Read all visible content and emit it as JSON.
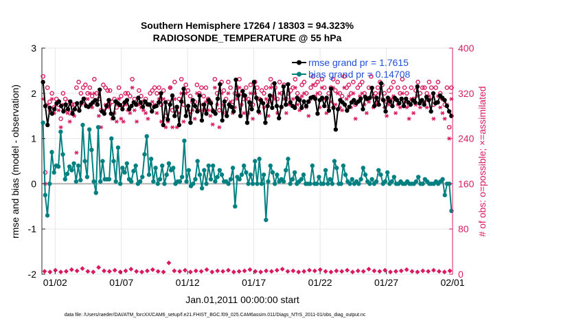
{
  "colors": {
    "rmse": "#000000",
    "bias": "#008080",
    "obs": "#d81b60",
    "zero_line": "#b0b0b0",
    "legend_text": "#1f4fd8",
    "grid": "#e6e6e6"
  },
  "chart_data": {
    "type": "line",
    "title": "Southern Hemisphere 17264 / 18303 = 94.323%",
    "subtitle": "RADIOSONDE_TEMPERATURE @ 55 hPa",
    "xlabel": "Jan.01,2011 00:00:00 start",
    "ylabel": "rmse and bias (model - observation)",
    "ylabel_right": "# of obs: o=possible; ×=assimilated",
    "footnote": "data file: /Users/raeder/DAI/ATM_forcXX/CAM6_setup/f.e21.FHIST_BGC.f09_025.CAM6assim.011/Diags_NTrS_2011-01/obs_diag_output.nc",
    "xlim": [
      0,
      31
    ],
    "ylim": [
      -2,
      3
    ],
    "ylim_right": [
      0,
      400
    ],
    "x_ticks": [
      1,
      6,
      11,
      16,
      21,
      26,
      31
    ],
    "x_tick_labels": [
      "01/02",
      "01/07",
      "01/12",
      "01/17",
      "01/22",
      "01/27",
      "02/01"
    ],
    "y_ticks": [
      -2,
      -1,
      0,
      1,
      2,
      3
    ],
    "y_tick_labels": [
      "-2",
      "-1",
      "0",
      "1",
      "2",
      "3"
    ],
    "y_ticks_right": [
      0,
      80,
      160,
      240,
      320,
      400
    ],
    "y_tick_labels_right": [
      "0",
      "80",
      "160",
      "240",
      "320",
      "400"
    ],
    "grid": true,
    "legend_position": "top-right",
    "series": [
      {
        "name": "rmse grand pr = 1.7615",
        "axis": "left",
        "values": [
          2.25,
          1.72,
          1.3,
          1.68,
          1.55,
          1.65,
          1.78,
          1.82,
          1.72,
          1.6,
          1.75,
          1.65,
          1.82,
          1.55,
          1.65,
          1.78,
          1.62,
          1.8,
          1.88,
          1.72,
          1.7,
          1.75,
          1.8,
          1.85,
          1.75,
          2.08,
          1.6,
          1.55,
          1.72,
          1.85,
          1.55,
          1.45,
          1.82,
          1.78,
          1.74,
          1.65,
          1.8,
          1.85,
          1.65,
          1.72,
          1.8,
          1.75,
          1.9,
          1.8,
          1.7,
          1.82,
          1.76,
          1.75,
          1.6,
          1.7,
          1.72,
          1.8,
          2.0,
          1.3,
          1.8,
          1.42,
          1.75,
          1.95,
          1.5,
          1.7,
          1.3,
          1.82,
          2.1,
          1.5,
          1.72,
          1.35,
          1.85,
          1.72,
          1.6,
          1.95,
          1.4,
          1.75,
          1.55,
          1.85,
          1.78,
          1.6,
          1.55,
          1.88,
          2.2,
          1.4,
          1.82,
          1.5,
          1.75,
          1.7,
          1.6,
          2.3,
          1.95,
          1.5,
          2.05,
          1.95,
          1.35,
          1.8,
          1.65,
          2.25,
          1.9,
          1.6,
          1.85,
          1.78,
          1.35,
          1.72,
          1.95,
          1.68,
          2.22,
          1.72,
          1.45,
          1.7,
          2.15,
          1.75,
          2.2,
          1.8,
          1.72,
          1.68,
          1.9,
          1.85,
          1.68,
          1.82,
          1.72,
          1.82,
          1.9,
          1.92,
          1.88,
          1.55,
          1.85,
          1.9,
          1.72,
          1.9,
          1.62,
          2.1,
          1.68,
          1.2,
          1.65,
          1.85,
          1.8,
          1.75,
          1.62,
          1.7,
          1.8,
          1.85,
          1.78,
          1.82,
          1.88,
          1.65,
          1.92,
          1.88,
          1.9,
          2.12,
          1.72,
          1.9,
          1.75,
          2.22,
          1.85,
          1.6,
          1.9,
          1.82,
          1.72,
          1.9,
          1.85,
          1.78,
          1.88,
          1.72,
          1.88,
          1.8,
          1.75,
          1.85,
          1.8,
          2.15,
          1.78,
          1.85,
          1.75,
          1.92,
          1.85,
          1.6,
          2.0,
          1.78,
          1.8,
          1.95,
          1.9,
          1.85,
          1.72,
          1.6,
          1.5
        ]
      },
      {
        "name": "bias grand pr = 0.14708",
        "axis": "left",
        "values": [
          1.35,
          -0.25,
          -0.7,
          0.0,
          0.7,
          0.25,
          0.4,
          0.38,
          1.15,
          0.65,
          0.1,
          0.22,
          0.38,
          0.3,
          0.45,
          0.05,
          0.4,
          0.08,
          1.3,
          0.5,
          0.15,
          1.2,
          0.75,
          0.05,
          -0.2,
          1.25,
          0.05,
          0.5,
          0.1,
          0.1,
          0.1,
          1.0,
          0.5,
          0.05,
          0.8,
          0.0,
          0.35,
          0.25,
          0.45,
          0.1,
          0.05,
          0.28,
          0.4,
          0.0,
          0.05,
          0.15,
          0.65,
          1.05,
          0.2,
          0.55,
          0.05,
          0.35,
          0.0,
          0.1,
          0.4,
          0.0,
          0.2,
          0.45,
          0.3,
          0.35,
          0.0,
          0.05,
          0.05,
          0.15,
          0.95,
          0.05,
          0.3,
          -0.05,
          0.0,
          0.1,
          0.5,
          0.2,
          -0.1,
          0.3,
          0.0,
          0.4,
          0.1,
          0.4,
          0.05,
          0.15,
          0.3,
          0.2,
          0.05,
          0.05,
          0.0,
          0.1,
          0.35,
          -0.5,
          0.15,
          0.1,
          0.2,
          0.4,
          0.25,
          0.0,
          0.2,
          0.0,
          0.5,
          0.0,
          0.55,
          0.0,
          0.2,
          -0.8,
          0.05,
          0.4,
          0.25,
          0.0,
          0.2,
          0.05,
          0.1,
          0.05,
          0.3,
          0.55,
          0.0,
          0.1,
          0.25,
          0.0,
          0.05,
          0.1,
          0.2,
          0.0,
          0.0,
          0.0,
          0.4,
          0.0,
          0.0,
          0.15,
          0.0,
          0.0,
          0.3,
          0.0,
          0.1,
          0.0,
          0.5,
          0.35,
          0.0,
          0.0,
          0.4,
          0.2,
          0.05,
          0.0,
          0.1,
          0.0,
          0.05,
          0.0,
          0.1,
          0.35,
          0.2,
          0.05,
          0.0,
          0.1,
          0.0,
          0.05,
          0.3,
          0.2,
          0.0,
          0.05,
          0.25,
          0.0,
          0.05,
          0.15,
          0.0,
          0.0,
          0.05,
          0.0,
          0.0,
          0.05,
          0.0,
          0.0,
          0.0,
          0.05,
          0.15,
          0.0,
          0.0,
          0.1,
          0.05,
          0.0,
          0.0,
          0.0,
          0.05,
          0.0,
          0.05,
          0.1,
          -0.25,
          0.0,
          0.0,
          -0.6
        ]
      }
    ],
    "obs_possible": {
      "axis": "right",
      "values": [
        350,
        180,
        330,
        305,
        320,
        295,
        310,
        300,
        275,
        320,
        310,
        305,
        285,
        300,
        300,
        330,
        340,
        320,
        330,
        335,
        320,
        330,
        315,
        345,
        320,
        310,
        290,
        335,
        330,
        325,
        325,
        305,
        310,
        295,
        330,
        315,
        300,
        320,
        320,
        315,
        345,
        310,
        300,
        325,
        315,
        305,
        310,
        300,
        320,
        325,
        330,
        320,
        330,
        300,
        325,
        280,
        305,
        330,
        290,
        340,
        295,
        310,
        345,
        300,
        335,
        325,
        315,
        305,
        305,
        335,
        320,
        330,
        315,
        330,
        310,
        305,
        290,
        345,
        320,
        290,
        340,
        325,
        310,
        340,
        330,
        305,
        320,
        330,
        345,
        320,
        310,
        330,
        310,
        335,
        300,
        340,
        330,
        310,
        325,
        320,
        330,
        305,
        345,
        335,
        330,
        310,
        340,
        320,
        335,
        310,
        320,
        325,
        330,
        345,
        320,
        310,
        335,
        340,
        320,
        305,
        330,
        350,
        335,
        340,
        320,
        345,
        330,
        310,
        320,
        330,
        345,
        325,
        340,
        320,
        315,
        350,
        330,
        335,
        320,
        340,
        300,
        330,
        335,
        340,
        320,
        310,
        330,
        350,
        315,
        320,
        330,
        340,
        335,
        320,
        305,
        325,
        330,
        340,
        310,
        330,
        320,
        345,
        330,
        320,
        300,
        330,
        310,
        325,
        340,
        320,
        330,
        330,
        320,
        340,
        330,
        300,
        330,
        340,
        320,
        310,
        300,
        330,
        260,
        330
      ]
    },
    "obs_assimilated": {
      "axis": "right",
      "values": [
        310,
        160,
        300,
        290,
        310,
        285,
        300,
        290,
        260,
        300,
        290,
        285,
        270,
        285,
        280,
        215,
        290,
        300,
        310,
        300,
        310,
        320,
        295,
        320,
        300,
        280,
        260,
        290,
        300,
        295,
        300,
        275,
        285,
        270,
        310,
        275,
        270,
        300,
        290,
        285,
        330,
        290,
        270,
        300,
        295,
        290,
        285,
        275,
        300,
        305,
        300,
        285,
        310,
        270,
        310,
        260,
        270,
        330,
        260,
        310,
        260,
        285,
        320,
        270,
        320,
        290,
        285,
        290,
        275,
        320,
        290,
        300,
        290,
        305,
        290,
        280,
        265,
        330,
        300,
        260,
        320,
        300,
        285,
        320,
        305,
        285,
        295,
        310,
        330,
        300,
        285,
        310,
        285,
        320,
        275,
        320,
        310,
        285,
        305,
        295,
        310,
        280,
        330,
        315,
        310,
        285,
        320,
        295,
        310,
        285,
        300,
        300,
        310,
        330,
        300,
        290,
        315,
        320,
        295,
        280,
        310,
        335,
        315,
        320,
        295,
        330,
        310,
        285,
        295,
        305,
        330,
        300,
        320,
        295,
        290,
        330,
        310,
        315,
        295,
        320,
        275,
        305,
        315,
        320,
        300,
        285,
        305,
        330,
        295,
        300,
        305,
        320,
        310,
        295,
        280,
        300,
        310,
        315,
        285,
        300,
        295,
        320,
        305,
        295,
        275,
        310,
        285,
        300,
        315,
        295,
        305,
        305,
        295,
        315,
        310,
        275,
        305,
        315,
        295,
        285,
        275,
        300,
        240,
        310
      ]
    }
  }
}
